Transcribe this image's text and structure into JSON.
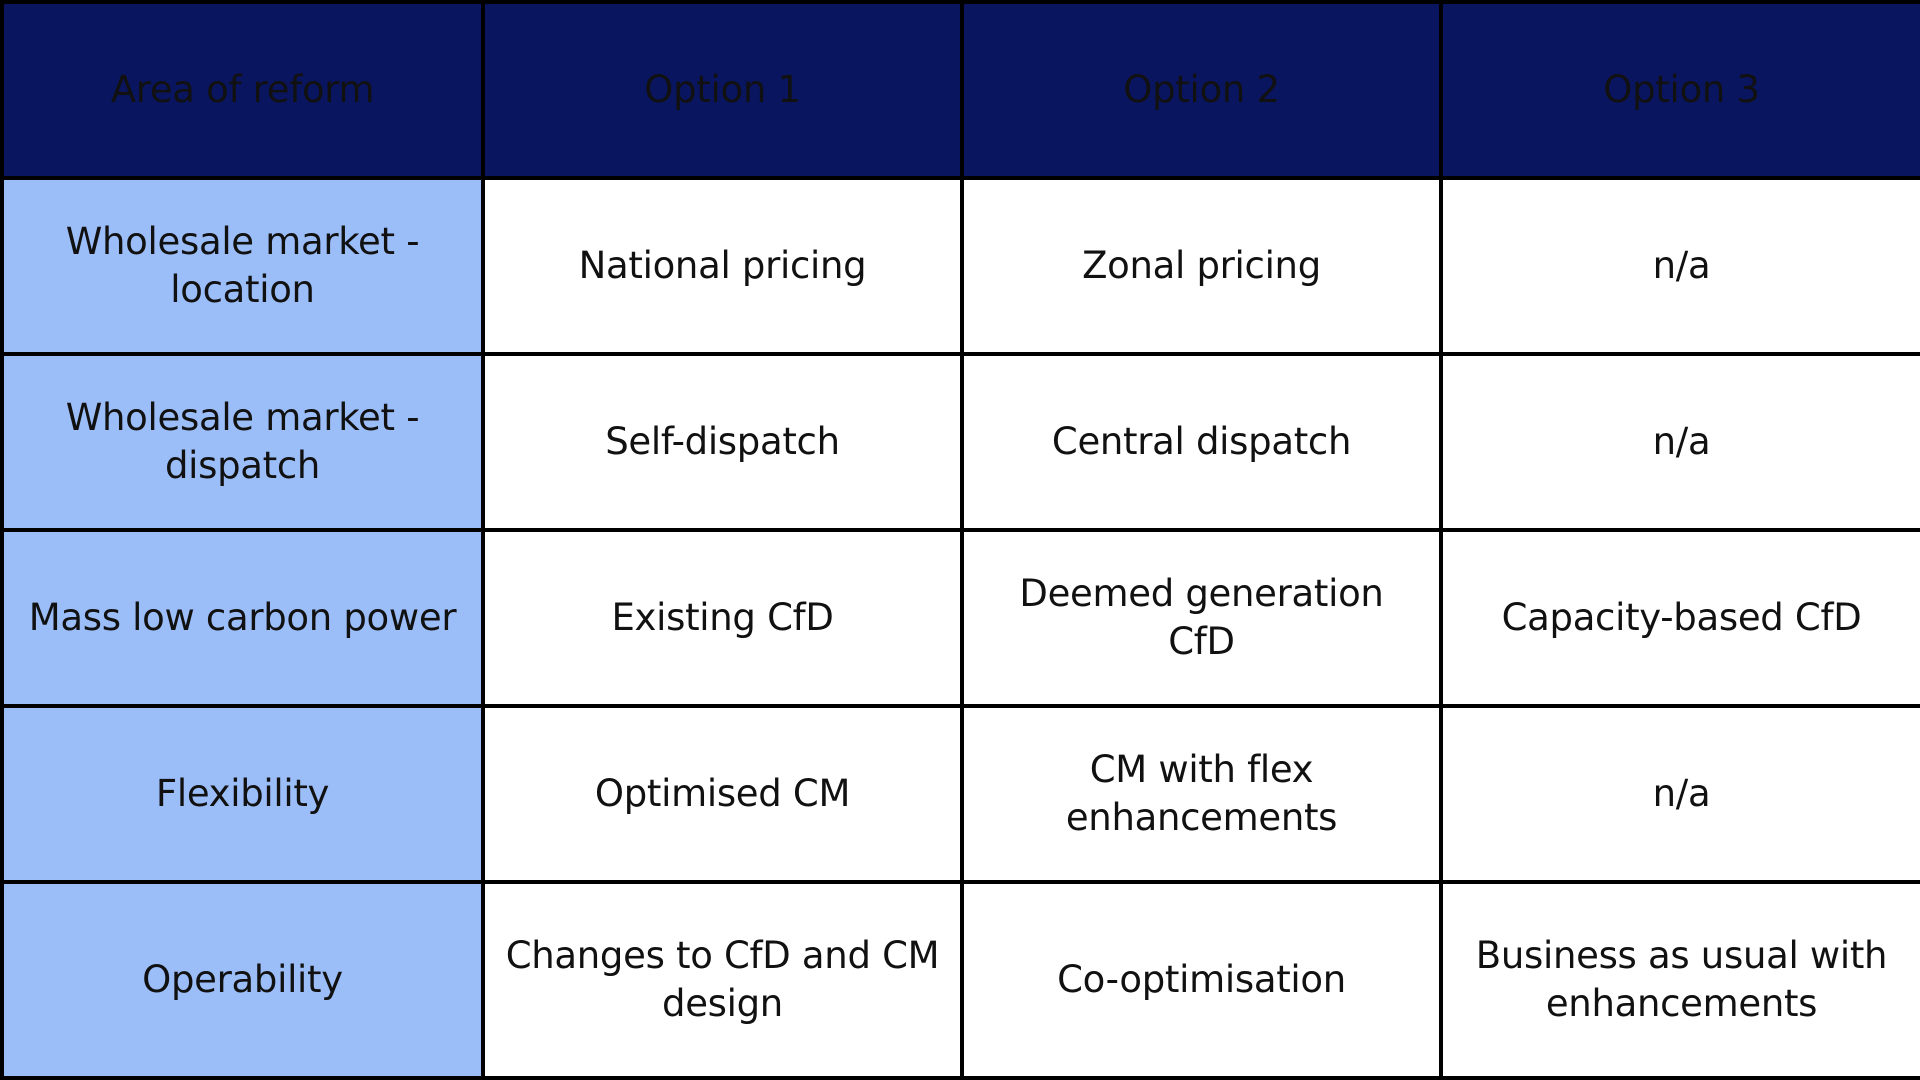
{
  "table": {
    "headers": [
      "Area of reform",
      "Option 1",
      "Option 2",
      "Option 3"
    ],
    "rows": [
      {
        "area": "Wholesale market - location",
        "options": [
          "National pricing",
          "Zonal pricing",
          "n/a"
        ]
      },
      {
        "area": "Wholesale market - dispatch",
        "options": [
          "Self-dispatch",
          "Central dispatch",
          "n/a"
        ]
      },
      {
        "area": "Mass low carbon power",
        "options": [
          "Existing CfD",
          "Deemed generation CfD",
          "Capacity-based CfD"
        ]
      },
      {
        "area": "Flexibility",
        "options": [
          "Optimised CM",
          "CM with flex enhancements",
          "n/a"
        ]
      },
      {
        "area": "Operability",
        "options": [
          "Changes to CfD and CM design",
          "Co-optimisation",
          "Business as usual with enhancements"
        ]
      }
    ]
  },
  "colors": {
    "header_bg": "#0a1560",
    "header_text": "#ffffff",
    "area_bg": "#9bbdf8",
    "cell_bg": "#ffffff",
    "border": "#000000"
  }
}
